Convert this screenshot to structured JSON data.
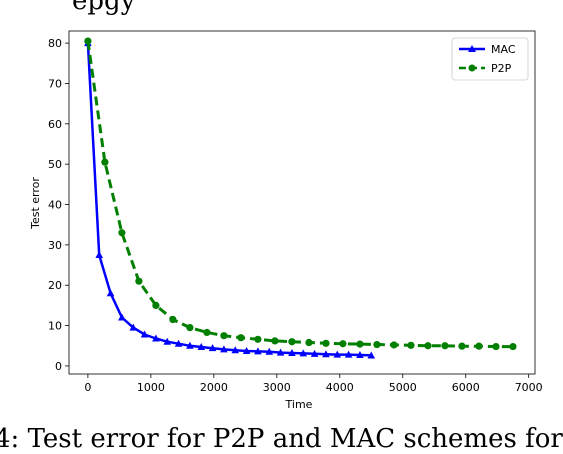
{
  "captions": {
    "top": "epgy",
    "bottom": "4: Test error for P2P and MAC schemes for"
  },
  "chart_data": {
    "type": "line",
    "xlabel": "Time",
    "ylabel": "Test error",
    "xlim": [
      -300,
      7100
    ],
    "ylim": [
      -2,
      83
    ],
    "xticks": [
      0,
      1000,
      2000,
      3000,
      4000,
      5000,
      6000,
      7000
    ],
    "yticks": [
      0,
      10,
      20,
      30,
      40,
      50,
      60,
      70,
      80
    ],
    "legend_position": "top-right",
    "grid": false,
    "series": [
      {
        "name": "MAC",
        "color": "#0000ff",
        "line_style": "solid",
        "marker": "triangle",
        "x": [
          0,
          180,
          360,
          540,
          720,
          900,
          1080,
          1260,
          1440,
          1620,
          1800,
          1980,
          2160,
          2340,
          2520,
          2700,
          2880,
          3060,
          3240,
          3420,
          3600,
          3780,
          3960,
          4140,
          4320,
          4500
        ],
        "y": [
          80,
          27.5,
          18,
          12,
          9.5,
          7.8,
          6.8,
          6.0,
          5.5,
          5.0,
          4.7,
          4.4,
          4.1,
          3.9,
          3.7,
          3.6,
          3.5,
          3.3,
          3.2,
          3.1,
          3.0,
          2.9,
          2.8,
          2.8,
          2.7,
          2.6
        ]
      },
      {
        "name": "P2P",
        "color": "#007f00",
        "line_style": "dashed",
        "marker": "circle",
        "x": [
          0,
          270,
          540,
          810,
          1080,
          1350,
          1620,
          1890,
          2160,
          2430,
          2700,
          2970,
          3240,
          3510,
          3780,
          4050,
          4320,
          4590,
          4860,
          5130,
          5400,
          5670,
          5940,
          6210,
          6480,
          6750
        ],
        "y": [
          80.5,
          50.5,
          33,
          21,
          15,
          11.5,
          9.5,
          8.3,
          7.5,
          7.0,
          6.6,
          6.2,
          6.0,
          5.8,
          5.6,
          5.5,
          5.4,
          5.3,
          5.2,
          5.1,
          5.0,
          5.0,
          4.9,
          4.9,
          4.8,
          4.8
        ]
      }
    ]
  }
}
